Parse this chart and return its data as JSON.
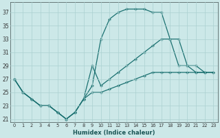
{
  "xlabel": "Humidex (Indice chaleur)",
  "bg_color": "#cce8e8",
  "line_color": "#1a7070",
  "grid_color": "#aad0d0",
  "xlim": [
    -0.5,
    23.5
  ],
  "ylim": [
    20.5,
    38.5
  ],
  "xticks": [
    0,
    1,
    2,
    3,
    4,
    5,
    6,
    7,
    8,
    9,
    10,
    11,
    12,
    13,
    14,
    15,
    16,
    17,
    18,
    19,
    20,
    21,
    22,
    23
  ],
  "yticks": [
    21,
    23,
    25,
    27,
    29,
    31,
    33,
    35,
    37
  ],
  "line1_x": [
    0,
    1,
    2,
    3,
    4,
    5,
    6,
    7,
    8,
    9,
    10,
    11,
    12,
    13,
    14,
    15,
    16,
    17,
    18,
    19,
    20,
    21,
    22,
    23
  ],
  "line1_y": [
    27,
    25,
    24,
    23,
    23,
    22,
    21,
    22,
    24,
    26,
    33,
    36,
    37,
    37.5,
    37.5,
    37.5,
    37,
    37,
    33,
    29,
    29,
    28,
    28,
    null
  ],
  "line2_x": [
    0,
    1,
    2,
    3,
    4,
    5,
    6,
    7,
    8,
    9,
    10,
    11,
    12,
    13,
    14,
    15,
    16,
    17,
    18,
    19,
    20,
    21,
    22,
    23
  ],
  "line2_y": [
    27,
    25,
    24,
    23,
    23,
    22,
    21,
    22,
    24,
    29,
    26,
    27,
    28,
    29,
    30,
    31,
    32,
    33,
    33,
    33,
    29,
    29,
    28,
    28
  ],
  "line3_x": [
    0,
    1,
    2,
    3,
    4,
    5,
    6,
    7,
    8,
    9,
    10,
    11,
    12,
    13,
    14,
    15,
    16,
    17,
    18,
    19,
    20,
    21,
    22,
    23
  ],
  "line3_y": [
    27,
    25,
    24,
    23,
    23,
    22,
    21,
    22,
    24,
    25,
    25,
    25.5,
    26,
    26.5,
    27,
    27.5,
    28,
    28,
    28,
    28,
    28,
    28,
    28,
    28
  ]
}
